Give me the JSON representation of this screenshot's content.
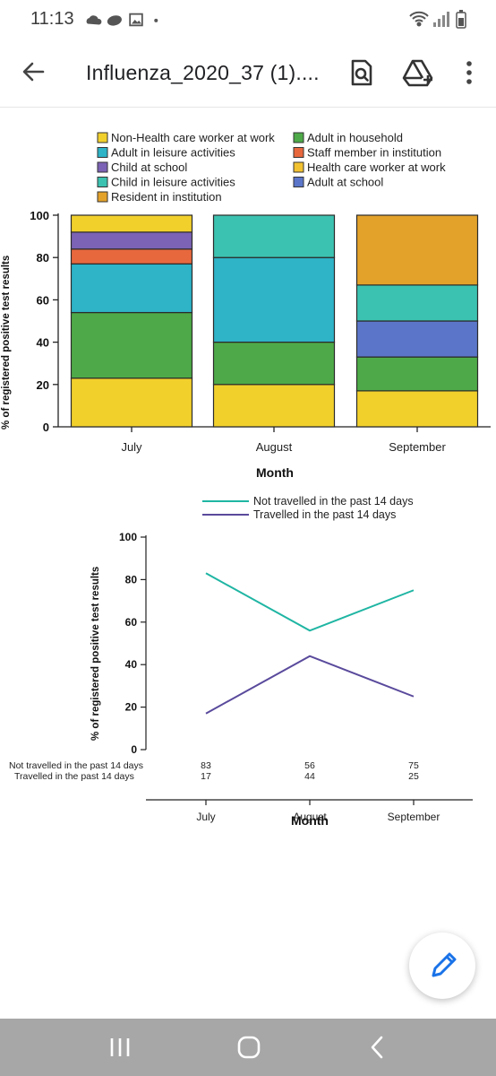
{
  "status_bar": {
    "time": "11:13",
    "left_icons": [
      "cloud-icon",
      "cloud-filled-icon",
      "image-icon",
      "dot-icon"
    ],
    "right_icons": [
      "wifi-icon",
      "signal-icon",
      "battery-icon"
    ]
  },
  "app_bar": {
    "back_icon": "arrow-left-icon",
    "title": "Influenza_2020_37 (1)....",
    "actions": [
      "search-document-icon",
      "add-to-drive-icon",
      "more-vert-icon"
    ]
  },
  "chart_data": [
    {
      "type": "bar",
      "stacked": true,
      "xlabel": "Month",
      "ylabel": "% of registered positive test results",
      "ylim": [
        0,
        100
      ],
      "yticks": [
        "0",
        "20",
        "40",
        "60",
        "80",
        "100"
      ],
      "categories": [
        "July",
        "August",
        "September"
      ],
      "legend": [
        {
          "name": "Non-Health care worker at work",
          "color": "#f2d02c"
        },
        {
          "name": "Adult in household",
          "color": "#4eaa48"
        },
        {
          "name": "Adult in leisure activities",
          "color": "#2eb3c7"
        },
        {
          "name": "Staff member in institution",
          "color": "#e8683e"
        },
        {
          "name": "Child at school",
          "color": "#7c63b5"
        },
        {
          "name": "Health care worker at work",
          "color": "#f2c230"
        },
        {
          "name": "Child in leisure activities",
          "color": "#3cc2b0"
        },
        {
          "name": "Adult at school",
          "color": "#5b76c9"
        },
        {
          "name": "Resident in institution",
          "color": "#e3a22a"
        }
      ],
      "series": [
        {
          "name": "Non-Health care worker at work",
          "color": "#f2d02c",
          "values": [
            23,
            20,
            17
          ]
        },
        {
          "name": "Adult in household",
          "color": "#4eaa48",
          "values": [
            31,
            20,
            16
          ]
        },
        {
          "name": "Adult in leisure activities",
          "color": "#2eb3c7",
          "values": [
            23,
            40,
            0
          ]
        },
        {
          "name": "Staff member in institution",
          "color": "#e8683e",
          "values": [
            7,
            0,
            0
          ]
        },
        {
          "name": "Child at school",
          "color": "#7c63b5",
          "values": [
            8,
            0,
            0
          ]
        },
        {
          "name": "Health care worker at work",
          "color": "#f2c230",
          "values": [
            0,
            0,
            0
          ]
        },
        {
          "name": "Adult at school",
          "color": "#5b76c9",
          "values": [
            0,
            0,
            17
          ]
        },
        {
          "name": "Child in leisure activities",
          "color": "#3cc2b0",
          "values": [
            0,
            20,
            17
          ]
        },
        {
          "name": "Resident in institution",
          "color": "#e3a22a",
          "values": [
            0,
            0,
            33
          ]
        },
        {
          "name": "Non-Health care worker at work",
          "color": "#f2d02c",
          "values": [
            8,
            0,
            0
          ]
        }
      ]
    },
    {
      "type": "line",
      "xlabel": "Month",
      "ylabel": "% of registered positive test results",
      "ylim": [
        0,
        100
      ],
      "yticks": [
        "0",
        "20",
        "40",
        "60",
        "80",
        "100"
      ],
      "categories": [
        "July",
        "August",
        "September"
      ],
      "series": [
        {
          "name": "Not travelled in the past 14 days",
          "color": "#1fb5a3",
          "values": [
            83,
            56,
            75
          ]
        },
        {
          "name": "Travelled in the past 14 days",
          "color": "#5a4a9c",
          "values": [
            17,
            44,
            25
          ]
        }
      ]
    }
  ],
  "fab": {
    "icon": "edit-pencil-icon"
  },
  "nav_bar": {
    "buttons": [
      "recent-apps-icon",
      "home-icon",
      "back-nav-icon"
    ]
  }
}
